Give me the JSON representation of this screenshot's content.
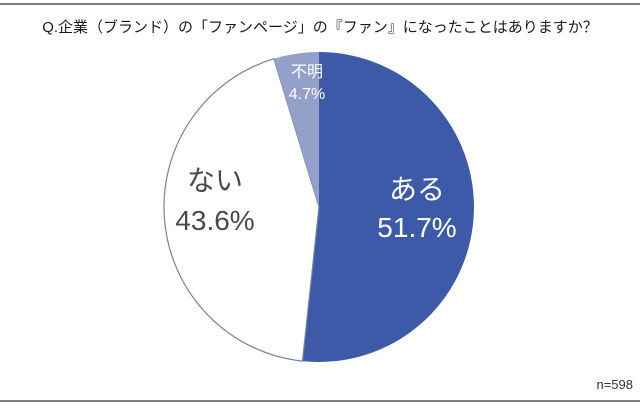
{
  "title": "Q.企業（ブランド）の「ファンページ」の『ファン』になったことはありますか？",
  "footnote": "n=598",
  "colors": {
    "border_line": "#7E7E7E",
    "title_text": "#1A1A1A",
    "footnote_text": "#333333"
  },
  "chart_data": {
    "type": "pie",
    "title": "Q.企業（ブランド）の「ファンページ」の『ファン』になったことはありますか？",
    "sample_note": "n=598",
    "direction": "clockwise",
    "start_angle_deg": 0,
    "legend": "none",
    "slices": [
      {
        "label": "ある",
        "value": 51.7,
        "pct_label": "51.7%",
        "color": "#3D5AA8",
        "text_color": "#FFFFFF"
      },
      {
        "label": "ない",
        "value": 43.6,
        "pct_label": "43.6%",
        "color": "#FFFFFF",
        "outline": "#77829E",
        "text_color": "#4A4A4A"
      },
      {
        "label": "不明",
        "value": 4.7,
        "pct_label": "4.7%",
        "color": "#93A0C9",
        "text_color": "#FFFFFF"
      }
    ]
  }
}
